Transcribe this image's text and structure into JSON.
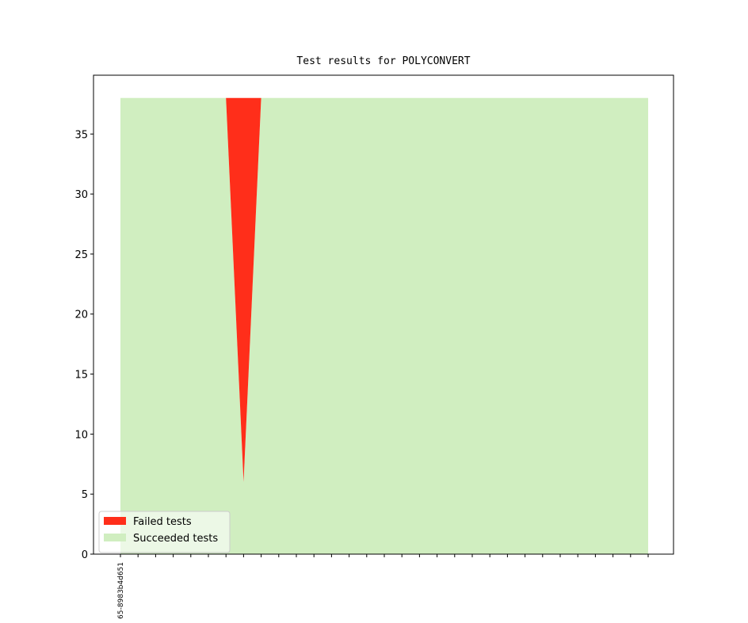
{
  "chart_data": {
    "type": "stacked-area",
    "title": "Test results for POLYCONVERT",
    "categories": [
      "65-8983b4d651",
      null,
      null,
      null,
      null,
      null,
      null,
      null,
      null,
      null,
      null,
      null,
      null,
      null,
      null,
      null,
      null,
      null,
      null,
      null,
      null,
      null,
      null,
      null,
      null,
      null,
      null,
      null,
      null,
      null,
      null
    ],
    "series": [
      {
        "name": "Failed tests",
        "color": "#ff2e1a",
        "values": [
          0,
          0,
          0,
          0,
          0,
          0,
          0,
          32,
          0,
          0,
          0,
          0,
          0,
          0,
          0,
          0,
          0,
          0,
          0,
          0,
          0,
          0,
          0,
          0,
          0,
          0,
          0,
          0,
          0,
          0,
          0
        ]
      },
      {
        "name": "Succeeded tests",
        "color": "#d0eec0",
        "values": [
          38,
          38,
          38,
          38,
          38,
          38,
          38,
          6,
          38,
          38,
          38,
          38,
          38,
          38,
          38,
          38,
          38,
          38,
          38,
          38,
          38,
          38,
          38,
          38,
          38,
          38,
          38,
          38,
          38,
          38,
          38
        ]
      }
    ],
    "ylim": [
      0,
      39.9
    ],
    "yticks": [
      0,
      5,
      10,
      15,
      20,
      25,
      30,
      35
    ],
    "legend": "lower left"
  }
}
